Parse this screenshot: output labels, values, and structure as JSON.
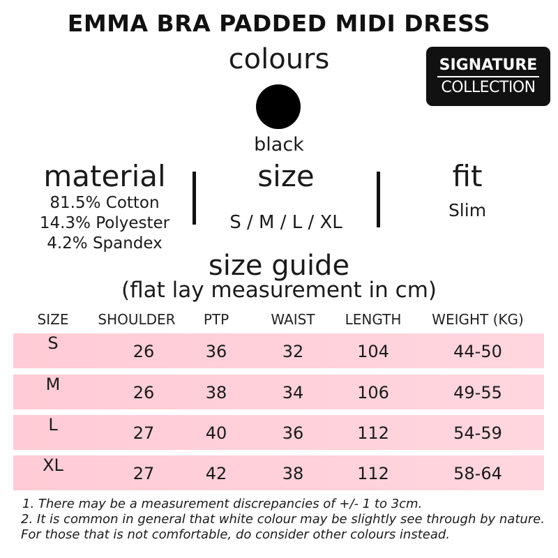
{
  "title": "EMMA BRA PADDED MIDI DRESS",
  "colours_heading": "colours",
  "badge": {
    "line1": "SIGNATURE",
    "line2": "COLLECTION"
  },
  "colours": [
    {
      "name": "black",
      "hex": "#000000"
    }
  ],
  "material": {
    "heading": "material",
    "lines": [
      "81.5% Cotton",
      "14.3% Polyester",
      "4.2% Spandex"
    ]
  },
  "size": {
    "heading": "size",
    "value": "S / M / L / XL"
  },
  "fit": {
    "heading": "fit",
    "value": "Slim"
  },
  "size_guide": {
    "heading": "size guide",
    "subheading": "(flat lay measurement in cm)",
    "columns": [
      "SIZE",
      "SHOULDER",
      "PTP",
      "WAIST",
      "LENGTH",
      "WEIGHT (KG)"
    ],
    "rows": [
      [
        "S",
        "26",
        "36",
        "32",
        "104",
        "44-50"
      ],
      [
        "M",
        "26",
        "38",
        "34",
        "106",
        "49-55"
      ],
      [
        "L",
        "27",
        "40",
        "36",
        "112",
        "54-59"
      ],
      [
        "XL",
        "27",
        "42",
        "38",
        "112",
        "58-64"
      ]
    ],
    "row_color": "#ffcbd6"
  },
  "notes": [
    "1.  There may be a measurement discrepancies of +/- 1 to 3cm.",
    "2. It is common in general that white colour may be slightly see through by nature. For those that is not comfortable, do consider other colours instead."
  ]
}
